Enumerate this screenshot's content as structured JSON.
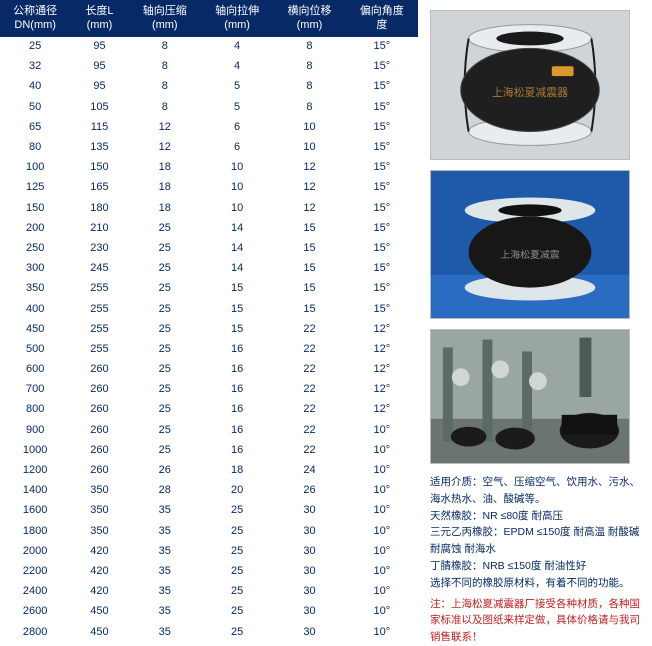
{
  "table": {
    "header_bg": "#072a66",
    "header_fg": "#ffffff",
    "body_fg": "#072a66",
    "columns": [
      {
        "l1": "公称通径",
        "l2": "DN(mm)"
      },
      {
        "l1": "长度L",
        "l2": "(mm)"
      },
      {
        "l1": "轴向压缩",
        "l2": "(mm)"
      },
      {
        "l1": "轴向拉伸",
        "l2": "(mm)"
      },
      {
        "l1": "横向位移",
        "l2": "(mm)"
      },
      {
        "l1": "偏向角度",
        "l2": "度"
      }
    ],
    "rows": [
      [
        "25",
        "95",
        "8",
        "4",
        "8",
        "15°"
      ],
      [
        "32",
        "95",
        "8",
        "4",
        "8",
        "15°"
      ],
      [
        "40",
        "95",
        "8",
        "5",
        "8",
        "15°"
      ],
      [
        "50",
        "105",
        "8",
        "5",
        "8",
        "15°"
      ],
      [
        "65",
        "115",
        "12",
        "6",
        "10",
        "15°"
      ],
      [
        "80",
        "135",
        "12",
        "6",
        "10",
        "15°"
      ],
      [
        "100",
        "150",
        "18",
        "10",
        "12",
        "15°"
      ],
      [
        "125",
        "165",
        "18",
        "10",
        "12",
        "15°"
      ],
      [
        "150",
        "180",
        "18",
        "10",
        "12",
        "15°"
      ],
      [
        "200",
        "210",
        "25",
        "14",
        "15",
        "15°"
      ],
      [
        "250",
        "230",
        "25",
        "14",
        "15",
        "15°"
      ],
      [
        "300",
        "245",
        "25",
        "14",
        "15",
        "15°"
      ],
      [
        "350",
        "255",
        "25",
        "15",
        "15",
        "15°"
      ],
      [
        "400",
        "255",
        "25",
        "15",
        "15",
        "15°"
      ],
      [
        "450",
        "255",
        "25",
        "15",
        "22",
        "12°"
      ],
      [
        "500",
        "255",
        "25",
        "16",
        "22",
        "12°"
      ],
      [
        "600",
        "260",
        "25",
        "16",
        "22",
        "12°"
      ],
      [
        "700",
        "260",
        "25",
        "16",
        "22",
        "12°"
      ],
      [
        "800",
        "260",
        "25",
        "16",
        "22",
        "12°"
      ],
      [
        "900",
        "260",
        "25",
        "16",
        "22",
        "10°"
      ],
      [
        "1000",
        "260",
        "25",
        "16",
        "22",
        "10°"
      ],
      [
        "1200",
        "260",
        "26",
        "18",
        "24",
        "10°"
      ],
      [
        "1400",
        "350",
        "28",
        "20",
        "26",
        "10°"
      ],
      [
        "1600",
        "350",
        "35",
        "25",
        "30",
        "10°"
      ],
      [
        "1800",
        "350",
        "35",
        "25",
        "30",
        "10°"
      ],
      [
        "2000",
        "420",
        "35",
        "25",
        "30",
        "10°"
      ],
      [
        "2200",
        "420",
        "35",
        "25",
        "30",
        "10°"
      ],
      [
        "2400",
        "420",
        "35",
        "25",
        "30",
        "10°"
      ],
      [
        "2600",
        "450",
        "35",
        "25",
        "30",
        "10°"
      ],
      [
        "2800",
        "450",
        "35",
        "25",
        "30",
        "10°"
      ]
    ]
  },
  "images": {
    "img1_alt": "rubber-joint-top-view",
    "img2_alt": "rubber-joint-blue-bg",
    "img3_alt": "pump-room-installation"
  },
  "description": {
    "line1": "适用介质：空气、压缩空气、饮用水、污水、海水热水、油、酸碱等。",
    "line2": "天然橡胶：NR ≤80度 耐高压",
    "line3": "三元乙丙橡胶：EPDM ≤150度 耐高温 耐酸碱 耐腐蚀 耐海水",
    "line4": "丁腈橡胶：NRB ≤150度 耐油性好",
    "line5": "选择不同的橡胶原材料，有着不同的功能。",
    "note": "注：上海松夏减震器厂接受各种材质，各种国家标准以及图纸来样定做，具体价格请与我司销售联系！"
  }
}
